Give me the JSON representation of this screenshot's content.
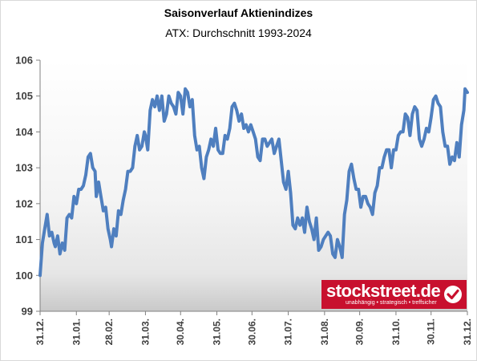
{
  "chart_data": {
    "type": "line",
    "title": "Saisonverlauf Aktienindizes",
    "subtitle": "ATX: Durchschnitt 1993-2024",
    "ylim": [
      99,
      106
    ],
    "yticks": [
      99,
      100,
      101,
      102,
      103,
      104,
      105,
      106
    ],
    "xlim": [
      0,
      365
    ],
    "xticks": [
      {
        "label": "31.12.",
        "pos": 0
      },
      {
        "label": "31.01.",
        "pos": 31
      },
      {
        "label": "28.02.",
        "pos": 59
      },
      {
        "label": "31.03.",
        "pos": 90
      },
      {
        "label": "30.04.",
        "pos": 120
      },
      {
        "label": "31.05.",
        "pos": 151
      },
      {
        "label": "30.06.",
        "pos": 181
      },
      {
        "label": "31.07.",
        "pos": 212
      },
      {
        "label": "31.08.",
        "pos": 243
      },
      {
        "label": "30.09.",
        "pos": 273
      },
      {
        "label": "31.10.",
        "pos": 304
      },
      {
        "label": "30.11.",
        "pos": 334
      },
      {
        "label": "31.12.",
        "pos": 365
      }
    ],
    "grid": false,
    "line_color": "#4f7fbf",
    "series": [
      {
        "values": [
          [
            0,
            100.0
          ],
          [
            2,
            100.9
          ],
          [
            4,
            101.3
          ],
          [
            6,
            101.7
          ],
          [
            8,
            101.1
          ],
          [
            10,
            101.2
          ],
          [
            12,
            100.9
          ],
          [
            13,
            100.8
          ],
          [
            15,
            101.1
          ],
          [
            17,
            100.6
          ],
          [
            19,
            100.9
          ],
          [
            21,
            100.7
          ],
          [
            23,
            101.6
          ],
          [
            25,
            101.7
          ],
          [
            27,
            101.6
          ],
          [
            29,
            102.2
          ],
          [
            31,
            102.0
          ],
          [
            33,
            102.4
          ],
          [
            35,
            102.4
          ],
          [
            37,
            102.5
          ],
          [
            39,
            102.8
          ],
          [
            41,
            103.3
          ],
          [
            43,
            103.4
          ],
          [
            45,
            103.0
          ],
          [
            47,
            102.9
          ],
          [
            48,
            102.2
          ],
          [
            50,
            102.6
          ],
          [
            52,
            102.2
          ],
          [
            54,
            101.8
          ],
          [
            56,
            101.9
          ],
          [
            58,
            101.3
          ],
          [
            60,
            101.0
          ],
          [
            61,
            100.8
          ],
          [
            63,
            101.3
          ],
          [
            65,
            101.1
          ],
          [
            67,
            101.8
          ],
          [
            69,
            101.7
          ],
          [
            71,
            102.1
          ],
          [
            73,
            102.4
          ],
          [
            75,
            102.9
          ],
          [
            77,
            102.9
          ],
          [
            79,
            103.0
          ],
          [
            81,
            103.6
          ],
          [
            83,
            103.9
          ],
          [
            85,
            103.5
          ],
          [
            87,
            103.6
          ],
          [
            89,
            104.0
          ],
          [
            90,
            103.9
          ],
          [
            92,
            103.5
          ],
          [
            94,
            104.6
          ],
          [
            96,
            104.9
          ],
          [
            98,
            104.7
          ],
          [
            100,
            105.0
          ],
          [
            102,
            104.6
          ],
          [
            104,
            105.0
          ],
          [
            106,
            104.3
          ],
          [
            108,
            104.5
          ],
          [
            110,
            105.0
          ],
          [
            112,
            104.8
          ],
          [
            114,
            104.7
          ],
          [
            116,
            104.5
          ],
          [
            118,
            105.1
          ],
          [
            120,
            105.0
          ],
          [
            122,
            104.5
          ],
          [
            124,
            105.2
          ],
          [
            126,
            105.1
          ],
          [
            128,
            104.7
          ],
          [
            130,
            104.9
          ],
          [
            132,
            103.9
          ],
          [
            134,
            103.5
          ],
          [
            136,
            103.6
          ],
          [
            138,
            103.0
          ],
          [
            140,
            102.7
          ],
          [
            142,
            103.3
          ],
          [
            144,
            103.5
          ],
          [
            146,
            103.8
          ],
          [
            148,
            103.6
          ],
          [
            150,
            104.1
          ],
          [
            152,
            103.5
          ],
          [
            154,
            103.4
          ],
          [
            156,
            103.4
          ],
          [
            158,
            103.9
          ],
          [
            160,
            103.8
          ],
          [
            162,
            104.1
          ],
          [
            164,
            104.7
          ],
          [
            166,
            104.8
          ],
          [
            168,
            104.6
          ],
          [
            170,
            104.3
          ],
          [
            172,
            104.5
          ],
          [
            174,
            104.1
          ],
          [
            176,
            104.2
          ],
          [
            178,
            104.0
          ],
          [
            180,
            104.2
          ],
          [
            182,
            104.0
          ],
          [
            184,
            103.8
          ],
          [
            186,
            103.3
          ],
          [
            188,
            103.2
          ],
          [
            190,
            103.8
          ],
          [
            192,
            103.8
          ],
          [
            194,
            103.6
          ],
          [
            196,
            103.7
          ],
          [
            198,
            103.8
          ],
          [
            200,
            103.4
          ],
          [
            202,
            103.6
          ],
          [
            204,
            103.8
          ],
          [
            206,
            103.2
          ],
          [
            208,
            102.6
          ],
          [
            210,
            102.4
          ],
          [
            212,
            102.9
          ],
          [
            214,
            102.3
          ],
          [
            216,
            101.4
          ],
          [
            218,
            101.3
          ],
          [
            220,
            101.6
          ],
          [
            222,
            101.4
          ],
          [
            224,
            101.6
          ],
          [
            226,
            101.2
          ],
          [
            228,
            101.9
          ],
          [
            230,
            101.5
          ],
          [
            232,
            101.3
          ],
          [
            234,
            101.0
          ],
          [
            236,
            101.6
          ],
          [
            238,
            100.7
          ],
          [
            240,
            100.8
          ],
          [
            242,
            101.0
          ],
          [
            244,
            101.1
          ],
          [
            246,
            101.2
          ],
          [
            248,
            101.1
          ],
          [
            250,
            100.6
          ],
          [
            252,
            100.5
          ],
          [
            254,
            101.0
          ],
          [
            256,
            100.8
          ],
          [
            258,
            100.5
          ],
          [
            260,
            101.7
          ],
          [
            262,
            102.1
          ],
          [
            264,
            102.9
          ],
          [
            266,
            103.1
          ],
          [
            268,
            102.7
          ],
          [
            270,
            102.4
          ],
          [
            272,
            102.4
          ],
          [
            274,
            101.9
          ],
          [
            276,
            102.2
          ],
          [
            278,
            102.2
          ],
          [
            280,
            102.0
          ],
          [
            282,
            101.9
          ],
          [
            284,
            101.7
          ],
          [
            286,
            102.3
          ],
          [
            288,
            102.5
          ],
          [
            290,
            103.0
          ],
          [
            292,
            103.0
          ],
          [
            294,
            103.3
          ],
          [
            296,
            103.5
          ],
          [
            298,
            103.5
          ],
          [
            300,
            103.0
          ],
          [
            302,
            103.5
          ],
          [
            304,
            103.5
          ],
          [
            306,
            103.9
          ],
          [
            308,
            104.0
          ],
          [
            310,
            104.0
          ],
          [
            312,
            104.5
          ],
          [
            314,
            104.4
          ],
          [
            316,
            103.9
          ],
          [
            318,
            104.5
          ],
          [
            320,
            104.7
          ],
          [
            322,
            104.6
          ],
          [
            324,
            103.8
          ],
          [
            326,
            103.6
          ],
          [
            328,
            103.8
          ],
          [
            330,
            104.1
          ],
          [
            332,
            104.0
          ],
          [
            334,
            104.4
          ],
          [
            336,
            104.9
          ],
          [
            338,
            105.0
          ],
          [
            340,
            104.8
          ],
          [
            342,
            104.7
          ],
          [
            344,
            104.0
          ],
          [
            346,
            103.6
          ],
          [
            348,
            103.6
          ],
          [
            350,
            103.1
          ],
          [
            352,
            103.3
          ],
          [
            354,
            103.2
          ],
          [
            356,
            103.7
          ],
          [
            358,
            103.3
          ],
          [
            360,
            104.2
          ],
          [
            362,
            104.6
          ],
          [
            363,
            105.2
          ],
          [
            365,
            105.1
          ]
        ]
      }
    ]
  },
  "watermark": {
    "brand": "stockstreet.de",
    "tagline": "unabhängig • strategisch • treffsicher",
    "brand_color": "#c8102e",
    "icon": "check-icon"
  }
}
